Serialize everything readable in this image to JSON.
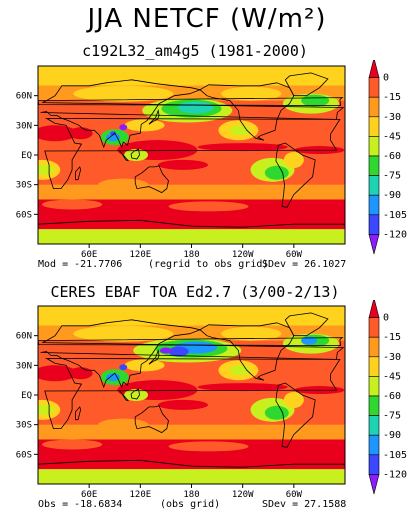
{
  "figure": {
    "title": "JJA NETCF (W/m²)",
    "panels": [
      {
        "title": "c192L32_am4g5 (1981-2000)",
        "stat_left": "Mod = -21.7706",
        "stat_mid": "(regrid to obs grid)",
        "stat_right": "SDev = 26.1027",
        "variant": "model"
      },
      {
        "title": "CERES EBAF TOA Ed2.7 (3/00-2/13)",
        "stat_left": "Obs = -18.6834",
        "stat_mid": "(obs grid)",
        "stat_right": "SDev = 27.1588",
        "variant": "obs"
      }
    ]
  },
  "chart_data": [
    {
      "type": "heatmap",
      "title": "c192L32_am4g5 (1981-2000)",
      "x_ticks": [
        "60E",
        "120E",
        "180",
        "120W",
        "60W"
      ],
      "y_ticks": [
        "60N",
        "30N",
        "EQ",
        "30S",
        "60S"
      ],
      "colorbar_levels": [
        0,
        -15,
        -30,
        -45,
        -60,
        -75,
        -90,
        -105,
        -120
      ],
      "global_mean": -21.7706,
      "sdev": 26.1027
    },
    {
      "type": "heatmap",
      "title": "CERES EBAF TOA Ed2.7 (3/00-2/13)",
      "x_ticks": [
        "60E",
        "120E",
        "180",
        "120W",
        "60W"
      ],
      "y_ticks": [
        "60N",
        "30N",
        "EQ",
        "30S",
        "60S"
      ],
      "colorbar_levels": [
        0,
        -15,
        -30,
        -45,
        -60,
        -75,
        -90,
        -105,
        -120
      ],
      "global_mean": -18.6834,
      "sdev": 27.1588
    }
  ],
  "colors": {
    "bins": [
      "#e8001c",
      "#ff5a2a",
      "#ff9a1e",
      "#ffd21e",
      "#c8f01e",
      "#2ed82e",
      "#1ed2b4",
      "#1e96ff",
      "#3b48ff",
      "#8a1eff"
    ]
  }
}
